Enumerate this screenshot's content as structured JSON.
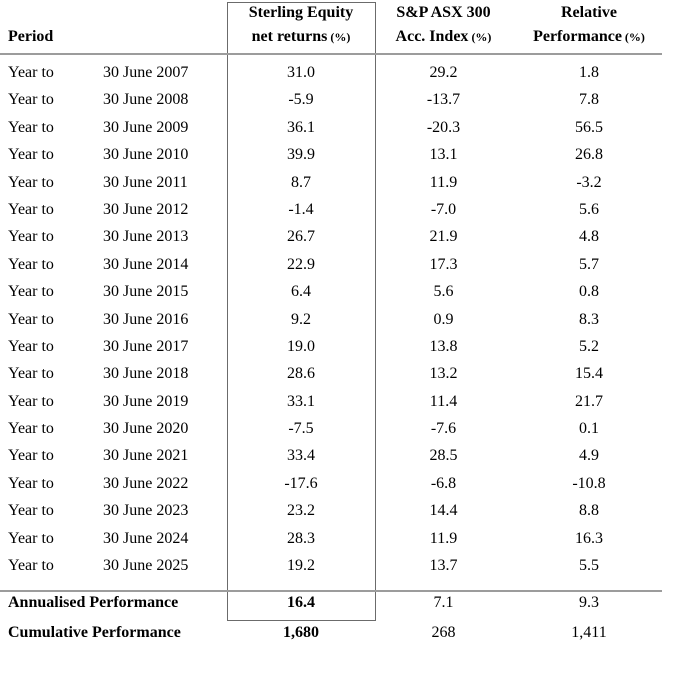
{
  "table": {
    "header": {
      "period": "Period",
      "cols": [
        {
          "line1": "Sterling Equity",
          "line2": "net returns",
          "unit": "(%)"
        },
        {
          "line1": "S&P ASX 300",
          "line2": "Acc. Index",
          "unit": "(%)"
        },
        {
          "line1": "Relative",
          "line2": "Performance",
          "unit": "(%)"
        }
      ]
    },
    "rows": [
      {
        "prefix": "Year to",
        "date": "30 June 2007",
        "sterling": "31.0",
        "index": "29.2",
        "relative": "1.8"
      },
      {
        "prefix": "Year to",
        "date": "30 June 2008",
        "sterling": "-5.9",
        "index": "-13.7",
        "relative": "7.8"
      },
      {
        "prefix": "Year to",
        "date": "30 June 2009",
        "sterling": "36.1",
        "index": "-20.3",
        "relative": "56.5"
      },
      {
        "prefix": "Year to",
        "date": "30 June 2010",
        "sterling": "39.9",
        "index": "13.1",
        "relative": "26.8"
      },
      {
        "prefix": "Year to",
        "date": "30 June 2011",
        "sterling": "8.7",
        "index": "11.9",
        "relative": "-3.2"
      },
      {
        "prefix": "Year to",
        "date": "30 June 2012",
        "sterling": "-1.4",
        "index": "-7.0",
        "relative": "5.6"
      },
      {
        "prefix": "Year to",
        "date": "30 June 2013",
        "sterling": "26.7",
        "index": "21.9",
        "relative": "4.8"
      },
      {
        "prefix": "Year to",
        "date": "30 June 2014",
        "sterling": "22.9",
        "index": "17.3",
        "relative": "5.7"
      },
      {
        "prefix": "Year to",
        "date": "30 June 2015",
        "sterling": "6.4",
        "index": "5.6",
        "relative": "0.8"
      },
      {
        "prefix": "Year to",
        "date": "30 June 2016",
        "sterling": "9.2",
        "index": "0.9",
        "relative": "8.3"
      },
      {
        "prefix": "Year to",
        "date": "30 June 2017",
        "sterling": "19.0",
        "index": "13.8",
        "relative": "5.2"
      },
      {
        "prefix": "Year to",
        "date": "30 June 2018",
        "sterling": "28.6",
        "index": "13.2",
        "relative": "15.4"
      },
      {
        "prefix": "Year to",
        "date": "30 June 2019",
        "sterling": "33.1",
        "index": "11.4",
        "relative": "21.7"
      },
      {
        "prefix": "Year to",
        "date": "30 June 2020",
        "sterling": "-7.5",
        "index": "-7.6",
        "relative": "0.1"
      },
      {
        "prefix": "Year to",
        "date": "30 June 2021",
        "sterling": "33.4",
        "index": "28.5",
        "relative": "4.9"
      },
      {
        "prefix": "Year to",
        "date": "30 June 2022",
        "sterling": "-17.6",
        "index": "-6.8",
        "relative": "-10.8"
      },
      {
        "prefix": "Year to",
        "date": "30 June 2023",
        "sterling": "23.2",
        "index": "14.4",
        "relative": "8.8"
      },
      {
        "prefix": "Year to",
        "date": "30 June 2024",
        "sterling": "28.3",
        "index": "11.9",
        "relative": "16.3"
      },
      {
        "prefix": "Year to",
        "date": "30 June 2025",
        "sterling": "19.2",
        "index": "13.7",
        "relative": "5.5"
      }
    ],
    "summary": [
      {
        "label": "Annualised Performance",
        "sterling": "16.4",
        "index": "7.1",
        "relative": "9.3"
      },
      {
        "label": "Cumulative Performance",
        "sterling": "1,680",
        "index": "268",
        "relative": "1,411"
      }
    ],
    "colors": {
      "background": "#ffffff",
      "text": "#000000",
      "rule": "#9c9c9c",
      "box_border": "#6b6b6b"
    }
  }
}
